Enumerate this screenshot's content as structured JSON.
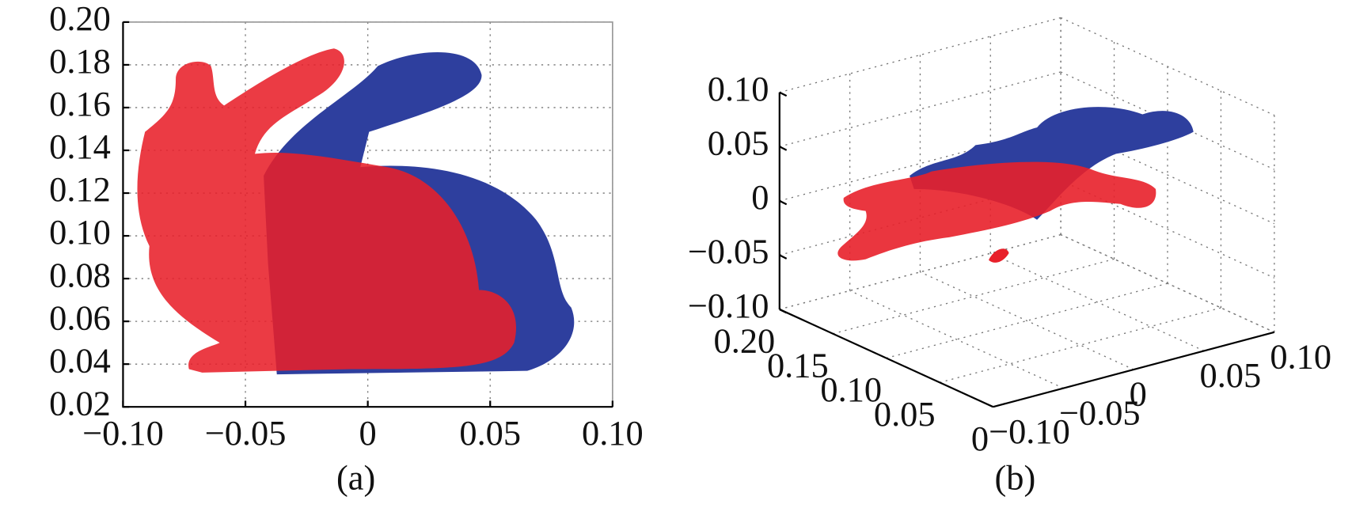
{
  "chart_data": [
    {
      "type": "scatter",
      "caption": "(a)",
      "xlim": [
        -0.1,
        0.1
      ],
      "xticks": [
        {
          "value": -0.1,
          "label": "−0.10"
        },
        {
          "value": -0.05,
          "label": "−0.05"
        },
        0,
        {
          "value": 0.05,
          "label": "0.05"
        },
        {
          "value": 0.1,
          "label": "0.10"
        }
      ],
      "ylim": [
        0.02,
        0.2
      ],
      "yticks": [
        {
          "value": 0.02,
          "label": "0.02"
        },
        {
          "value": 0.04,
          "label": "0.04"
        },
        {
          "value": 0.06,
          "label": "0.06"
        },
        {
          "value": 0.08,
          "label": "0.08"
        },
        {
          "value": 0.1,
          "label": "0.10"
        },
        {
          "value": 0.12,
          "label": "0.12"
        },
        {
          "value": 0.14,
          "label": "0.14"
        },
        {
          "value": 0.16,
          "label": "0.16"
        },
        {
          "value": 0.18,
          "label": "0.18"
        },
        {
          "value": 0.2,
          "label": "0.20"
        }
      ],
      "grid": true
    },
    {
      "type": "scatter3d",
      "caption": "(b)",
      "xlim": [
        -0.1,
        0.1
      ],
      "xticks": [
        {
          "value": -0.1,
          "label": "−0.10"
        },
        {
          "value": -0.05,
          "label": "−0.05"
        },
        0,
        {
          "value": 0.05,
          "label": "0.05"
        },
        {
          "value": 0.1,
          "label": "0.10"
        }
      ],
      "ylim": [
        0,
        0.2
      ],
      "yticks": [
        0,
        {
          "value": 0.05,
          "label": "0.05"
        },
        {
          "value": 0.1,
          "label": "0.10"
        },
        {
          "value": 0.15,
          "label": "0.15"
        },
        {
          "value": 0.2,
          "label": "0.20"
        }
      ],
      "zlim": [
        -0.1,
        0.1
      ],
      "zticks": [
        {
          "value": -0.1,
          "label": "−0.10"
        },
        {
          "value": -0.05,
          "label": "−0.05"
        },
        0,
        {
          "value": 0.05,
          "label": "0.05"
        },
        {
          "value": 0.1,
          "label": "0.10"
        }
      ],
      "grid": true
    }
  ]
}
